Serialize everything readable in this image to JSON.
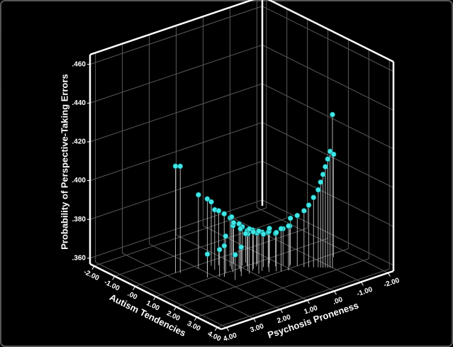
{
  "chart_data": {
    "type": "scatter3d",
    "x_label": "Autism Tendencies",
    "y_label": "Psychosis Proneness",
    "z_label": "Probability of Perspective-Taking Errors",
    "xlim": [
      -2.2,
      4.2
    ],
    "ylim": [
      -2.2,
      4.2
    ],
    "zlim": [
      0.357,
      0.465
    ],
    "xticks": [
      {
        "value": -2,
        "label": "-2.00"
      },
      {
        "value": -1,
        "label": "-1.00"
      },
      {
        "value": 0,
        "label": ".00"
      },
      {
        "value": 1,
        "label": "1.00"
      },
      {
        "value": 2,
        "label": "2.00"
      },
      {
        "value": 3,
        "label": "3.00"
      },
      {
        "value": 4,
        "label": "4.00"
      }
    ],
    "yticks": [
      {
        "value": -2,
        "label": "-2.00"
      },
      {
        "value": -1,
        "label": "-1.00"
      },
      {
        "value": 0,
        "label": ".00"
      },
      {
        "value": 1,
        "label": "1.00"
      },
      {
        "value": 2,
        "label": "2.00"
      },
      {
        "value": 3,
        "label": "3.00"
      },
      {
        "value": 4,
        "label": "4.00"
      }
    ],
    "zticks": [
      {
        "value": 0.36,
        "label": ".360"
      },
      {
        "value": 0.38,
        "label": ".380"
      },
      {
        "value": 0.4,
        "label": ".400"
      },
      {
        "value": 0.42,
        "label": ".420"
      },
      {
        "value": 0.44,
        "label": ".440"
      },
      {
        "value": 0.46,
        "label": ".460"
      }
    ],
    "grid": true,
    "series": [
      {
        "color": "#3fe6e6",
        "x": [
          0.0,
          0.1,
          0.2,
          0.5,
          0.3,
          0.6,
          0.4,
          0.8,
          0.7,
          0.9,
          1.0,
          1.1,
          0.6,
          0.9,
          1.2,
          1.3,
          1.0,
          1.4,
          1.5,
          1.2,
          1.6,
          1.1,
          1.3,
          1.7,
          1.5,
          0.8,
          1.0,
          1.4,
          1.8,
          1.6,
          1.9,
          1.2,
          1.7,
          2.0,
          1.5,
          1.3,
          1.9,
          2.1,
          1.8,
          2.0,
          2.2,
          2.3,
          2.4,
          2.5,
          2.55,
          2.6,
          2.65,
          2.7,
          2.75,
          2.2,
          2.8,
          1.1,
          0.9,
          1.6
        ],
        "y": [
          2.7,
          2.6,
          2.0,
          1.9,
          1.6,
          1.7,
          1.4,
          1.5,
          1.2,
          1.3,
          1.1,
          1.4,
          1.0,
          0.9,
          1.2,
          1.0,
          0.8,
          0.9,
          1.1,
          0.6,
          0.7,
          0.5,
          0.8,
          0.9,
          0.4,
          0.7,
          1.6,
          0.5,
          0.6,
          0.2,
          0.4,
          1.8,
          0.0,
          0.3,
          1.4,
          0.2,
          -0.1,
          0.1,
          -0.2,
          -0.3,
          -0.4,
          -0.5,
          -0.6,
          -0.7,
          -0.75,
          -0.8,
          -0.85,
          -0.9,
          -0.95,
          -1.5,
          -1.0,
          1.9,
          2.2,
          1.7
        ],
        "z": [
          0.412,
          0.412,
          0.395,
          0.394,
          0.39,
          0.388,
          0.385,
          0.386,
          0.382,
          0.384,
          0.38,
          0.381,
          0.378,
          0.377,
          0.379,
          0.376,
          0.375,
          0.378,
          0.38,
          0.374,
          0.377,
          0.373,
          0.376,
          0.379,
          0.375,
          0.372,
          0.376,
          0.374,
          0.378,
          0.374,
          0.377,
          0.373,
          0.376,
          0.379,
          0.372,
          0.375,
          0.378,
          0.38,
          0.381,
          0.383,
          0.386,
          0.389,
          0.393,
          0.397,
          0.401,
          0.405,
          0.409,
          0.413,
          0.417,
          0.41,
          0.436,
          0.371,
          0.369,
          0.37
        ]
      }
    ]
  }
}
